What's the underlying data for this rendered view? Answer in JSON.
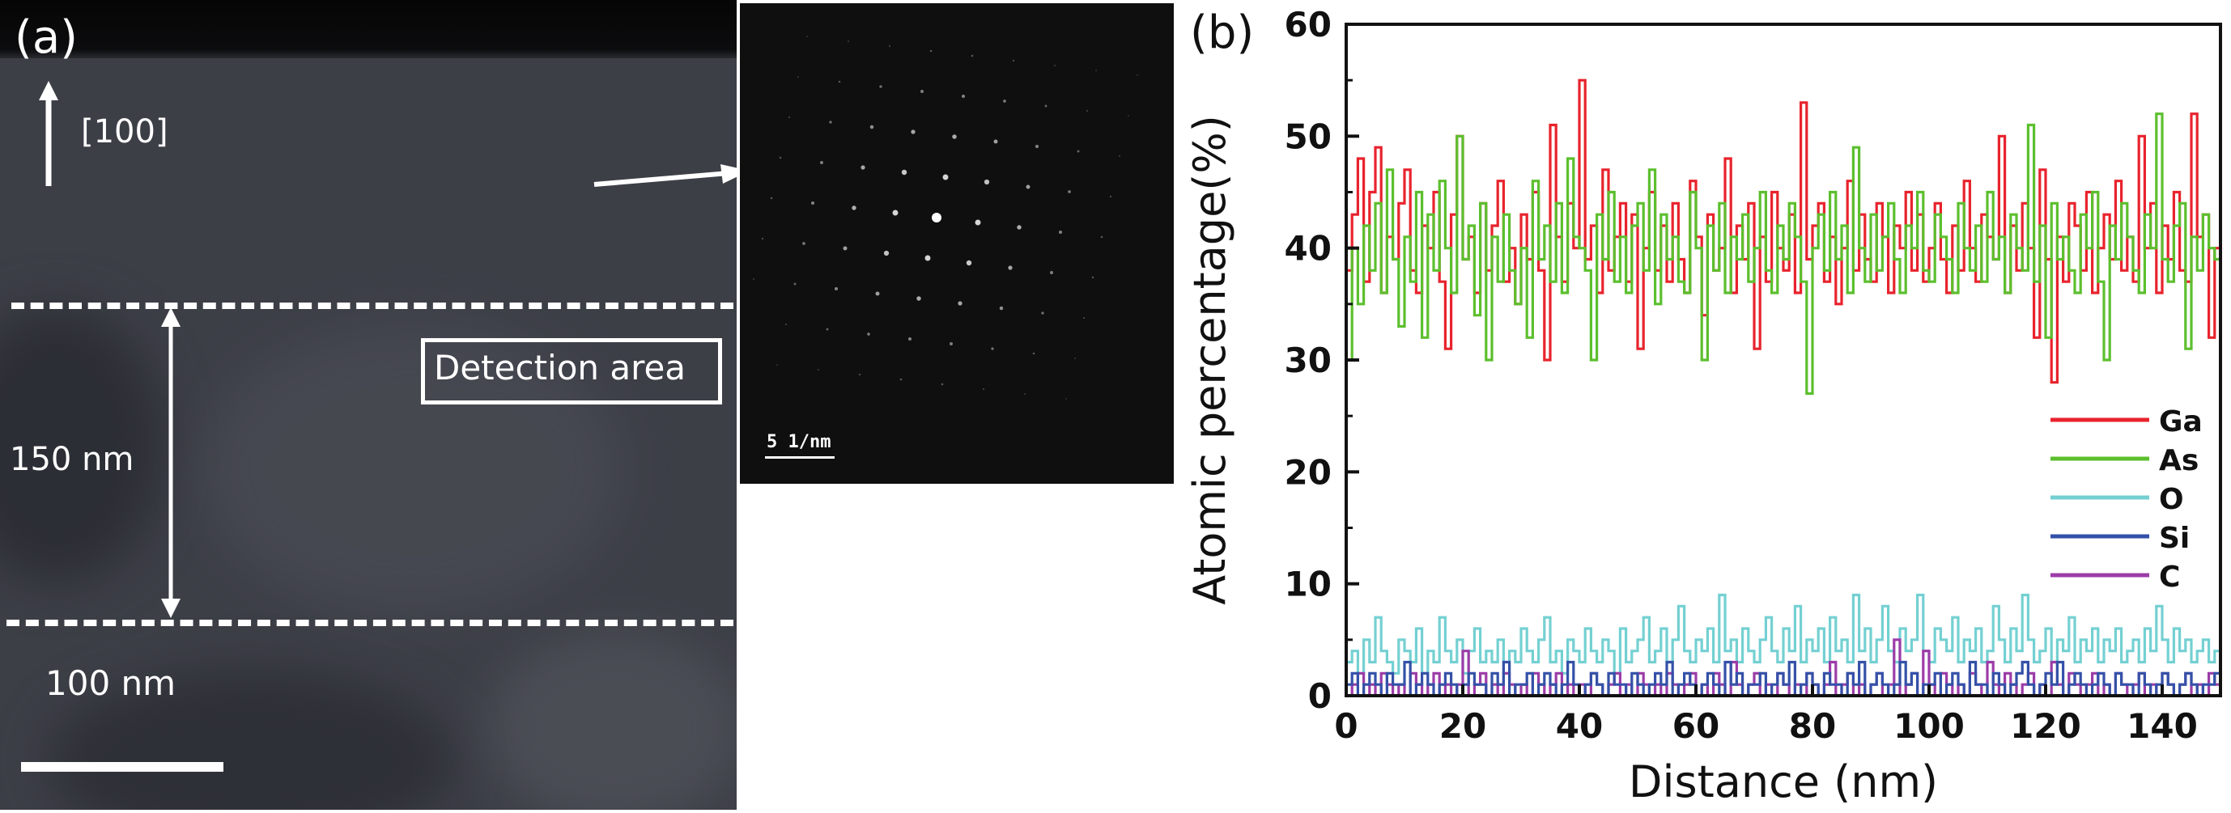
{
  "panel_a": {
    "label": "(a)",
    "direction_label": "[100]",
    "detection_label": "Detection area",
    "thickness_label": "150 nm",
    "scalebar_label": "100 nm",
    "inset_scalebar_label": "5 1/nm"
  },
  "panel_b": {
    "label": "(b)"
  },
  "chart_data": {
    "type": "line",
    "title": "",
    "xlabel": "Distance (nm)",
    "ylabel": "Atomic percentage(%)",
    "xlim": [
      0,
      150
    ],
    "ylim": [
      0,
      60
    ],
    "xticks": [
      0,
      20,
      40,
      60,
      80,
      100,
      120,
      140
    ],
    "yticks": [
      0,
      10,
      20,
      30,
      40,
      50,
      60
    ],
    "grid": false,
    "legend_position": "right",
    "x_step": 1,
    "series": [
      {
        "name": "Ga",
        "color": "#e8232d",
        "values": [
          38,
          43,
          48,
          37,
          45,
          49,
          36,
          41,
          39,
          44,
          47,
          38,
          36,
          42,
          40,
          45,
          37,
          31,
          43,
          50,
          39,
          41,
          36,
          44,
          38,
          42,
          46,
          37,
          40,
          35,
          43,
          39,
          45,
          38,
          30,
          51,
          41,
          37,
          44,
          40,
          55,
          39,
          42,
          36,
          47,
          38,
          41,
          44,
          37,
          43,
          31,
          40,
          45,
          38,
          42,
          37,
          44,
          39,
          36,
          46,
          41,
          34,
          43,
          38,
          40,
          48,
          36,
          42,
          39,
          44,
          31,
          41,
          37,
          45,
          40,
          38,
          43,
          36,
          53,
          39,
          42,
          44,
          37,
          41,
          35,
          40,
          46,
          38,
          43,
          39,
          37,
          44,
          41,
          36,
          42,
          40,
          45,
          38,
          43,
          37,
          40,
          44,
          39,
          36,
          42,
          38,
          46,
          40,
          37,
          43,
          41,
          39,
          50,
          36,
          42,
          38,
          44,
          40,
          32,
          47,
          39,
          28,
          41,
          37,
          44,
          42,
          38,
          45,
          36,
          40,
          43,
          39,
          46,
          38,
          41,
          37,
          50,
          40,
          44,
          36,
          42,
          39,
          45,
          38,
          37,
          52,
          41,
          43,
          32,
          40,
          38
        ]
      },
      {
        "name": "As",
        "color": "#5cbf2e",
        "values": [
          30,
          40,
          35,
          42,
          38,
          44,
          36,
          47,
          39,
          33,
          41,
          37,
          45,
          32,
          43,
          38,
          46,
          40,
          36,
          50,
          39,
          42,
          34,
          44,
          30,
          41,
          37,
          43,
          38,
          35,
          40,
          32,
          46,
          39,
          42,
          37,
          44,
          36,
          48,
          41,
          40,
          38,
          30,
          43,
          39,
          45,
          37,
          41,
          36,
          42,
          44,
          38,
          47,
          35,
          43,
          39,
          41,
          37,
          36,
          45,
          40,
          30,
          42,
          38,
          44,
          36,
          41,
          39,
          43,
          37,
          40,
          45,
          38,
          36,
          42,
          39,
          44,
          41,
          37,
          27,
          40,
          43,
          38,
          45,
          39,
          42,
          36,
          49,
          40,
          37,
          43,
          38,
          41,
          44,
          39,
          36,
          42,
          40,
          45,
          38,
          37,
          43,
          41,
          39,
          36,
          44,
          40,
          38,
          42,
          37,
          45,
          39,
          41,
          36,
          43,
          40,
          38,
          51,
          37,
          42,
          32,
          44,
          39,
          41,
          38,
          36,
          43,
          40,
          45,
          37,
          30,
          42,
          39,
          44,
          41,
          38,
          36,
          43,
          40,
          52,
          39,
          37,
          42,
          44,
          31,
          41,
          38,
          43,
          40,
          39,
          45
        ]
      },
      {
        "name": "O",
        "color": "#74d0d2",
        "values": [
          3,
          4,
          2,
          5,
          3,
          7,
          4,
          3,
          2,
          5,
          4,
          3,
          6,
          2,
          4,
          3,
          7,
          4,
          3,
          5,
          2,
          4,
          6,
          3,
          4,
          3,
          5,
          2,
          4,
          3,
          6,
          4,
          3,
          5,
          7,
          3,
          4,
          2,
          5,
          4,
          3,
          6,
          4,
          3,
          5,
          4,
          2,
          6,
          3,
          4,
          5,
          7,
          3,
          4,
          6,
          3,
          5,
          8,
          4,
          3,
          5,
          4,
          6,
          3,
          9,
          4,
          5,
          3,
          6,
          4,
          3,
          5,
          7,
          4,
          3,
          6,
          4,
          8,
          3,
          5,
          4,
          6,
          3,
          7,
          4,
          5,
          3,
          9,
          4,
          6,
          3,
          5,
          8,
          4,
          3,
          6,
          4,
          5,
          9,
          4,
          3,
          6,
          5,
          4,
          7,
          3,
          5,
          4,
          6,
          3,
          4,
          8,
          5,
          3,
          6,
          4,
          9,
          5,
          3,
          4,
          6,
          3,
          5,
          4,
          7,
          3,
          5,
          4,
          6,
          3,
          5,
          4,
          6,
          3,
          4,
          5,
          3,
          6,
          4,
          8,
          5,
          3,
          6,
          4,
          5,
          3,
          4,
          5,
          3,
          4,
          5
        ]
      },
      {
        "name": "Si",
        "color": "#3451a8",
        "values": [
          1,
          2,
          0,
          1,
          2,
          1,
          0,
          2,
          1,
          1,
          3,
          0,
          1,
          2,
          1,
          0,
          1,
          2,
          1,
          0,
          1,
          2,
          1,
          1,
          0,
          2,
          1,
          3,
          0,
          1,
          1,
          2,
          0,
          1,
          2,
          1,
          0,
          1,
          3,
          1,
          0,
          1,
          2,
          1,
          0,
          2,
          1,
          1,
          0,
          2,
          1,
          0,
          1,
          2,
          1,
          3,
          0,
          1,
          2,
          1,
          0,
          1,
          2,
          1,
          0,
          3,
          1,
          2,
          0,
          1,
          1,
          2,
          0,
          1,
          2,
          1,
          3,
          0,
          1,
          2,
          1,
          0,
          2,
          1,
          1,
          0,
          2,
          1,
          3,
          0,
          1,
          2,
          1,
          0,
          1,
          3,
          1,
          2,
          0,
          1,
          1,
          2,
          0,
          1,
          2,
          1,
          0,
          3,
          1,
          1,
          0,
          2,
          1,
          0,
          1,
          2,
          3,
          1,
          0,
          1,
          2,
          1,
          3,
          0,
          1,
          2,
          1,
          0,
          1,
          2,
          1,
          0,
          2,
          1,
          1,
          0,
          2,
          1,
          0,
          1,
          2,
          1,
          0,
          1,
          2,
          1,
          0,
          1,
          1,
          2,
          1
        ]
      },
      {
        "name": "C",
        "color": "#9c3ca8",
        "values": [
          0,
          1,
          2,
          0,
          1,
          0,
          2,
          1,
          0,
          1,
          0,
          2,
          1,
          0,
          1,
          2,
          0,
          1,
          0,
          1,
          4,
          0,
          1,
          2,
          0,
          1,
          0,
          2,
          1,
          0,
          1,
          0,
          2,
          1,
          0,
          1,
          2,
          0,
          1,
          0,
          1,
          0,
          2,
          1,
          0,
          1,
          2,
          0,
          1,
          0,
          2,
          1,
          0,
          1,
          0,
          2,
          1,
          0,
          1,
          2,
          0,
          1,
          0,
          2,
          1,
          0,
          3,
          1,
          0,
          1,
          2,
          0,
          1,
          0,
          2,
          1,
          0,
          1,
          0,
          2,
          1,
          0,
          1,
          3,
          0,
          1,
          2,
          0,
          1,
          0,
          1,
          2,
          0,
          1,
          5,
          0,
          1,
          2,
          0,
          4,
          1,
          0,
          2,
          1,
          0,
          1,
          0,
          2,
          1,
          0,
          3,
          1,
          0,
          2,
          1,
          0,
          1,
          2,
          0,
          1,
          0,
          3,
          1,
          0,
          2,
          1,
          0,
          1,
          2,
          0,
          1,
          0,
          2,
          1,
          0,
          1,
          2,
          0,
          1,
          0,
          2,
          1,
          0,
          1,
          2,
          0,
          1,
          0,
          2,
          1,
          0
        ]
      }
    ]
  }
}
